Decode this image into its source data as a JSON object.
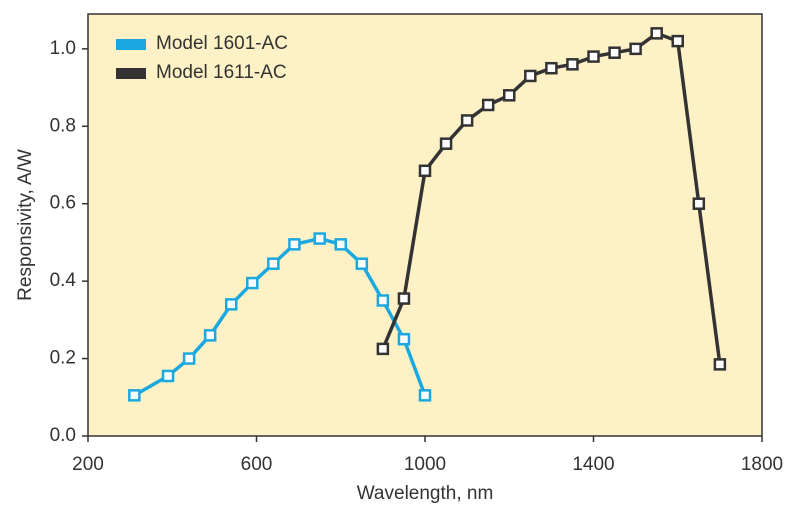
{
  "chart_data": {
    "type": "line",
    "xlabel": "Wavelength, nm",
    "ylabel": "Responsivity, A/W",
    "xlim": [
      200,
      1800
    ],
    "xticks": [
      200,
      600,
      1000,
      1400,
      1800
    ],
    "ylim": [
      0,
      1.09
    ],
    "yticks": [
      {
        "value": 0,
        "label": "0.0"
      },
      0.2,
      0.4,
      0.6,
      0.8,
      {
        "value": 1,
        "label": "1.0"
      }
    ],
    "legend": "upper left",
    "background": "#fdf1c5",
    "series": [
      {
        "name": "Model 1601-AC",
        "color": "#1ba8e0",
        "x": [
          310,
          390,
          440,
          490,
          540,
          590,
          640,
          690,
          750,
          800,
          850,
          900,
          950,
          1000
        ],
        "values": [
          0.105,
          0.155,
          0.2,
          0.26,
          0.34,
          0.395,
          0.445,
          0.495,
          0.51,
          0.495,
          0.445,
          0.35,
          0.25,
          0.105
        ]
      },
      {
        "name": "Model 1611-AC",
        "color": "#333333",
        "x": [
          900,
          950,
          1000,
          1050,
          1100,
          1150,
          1200,
          1250,
          1300,
          1350,
          1400,
          1450,
          1500,
          1550,
          1600,
          1650,
          1700
        ],
        "values": [
          0.225,
          0.355,
          0.685,
          0.755,
          0.815,
          0.855,
          0.88,
          0.93,
          0.95,
          0.96,
          0.98,
          0.99,
          1.0,
          1.04,
          1.02,
          0.6,
          0.185
        ]
      }
    ]
  }
}
